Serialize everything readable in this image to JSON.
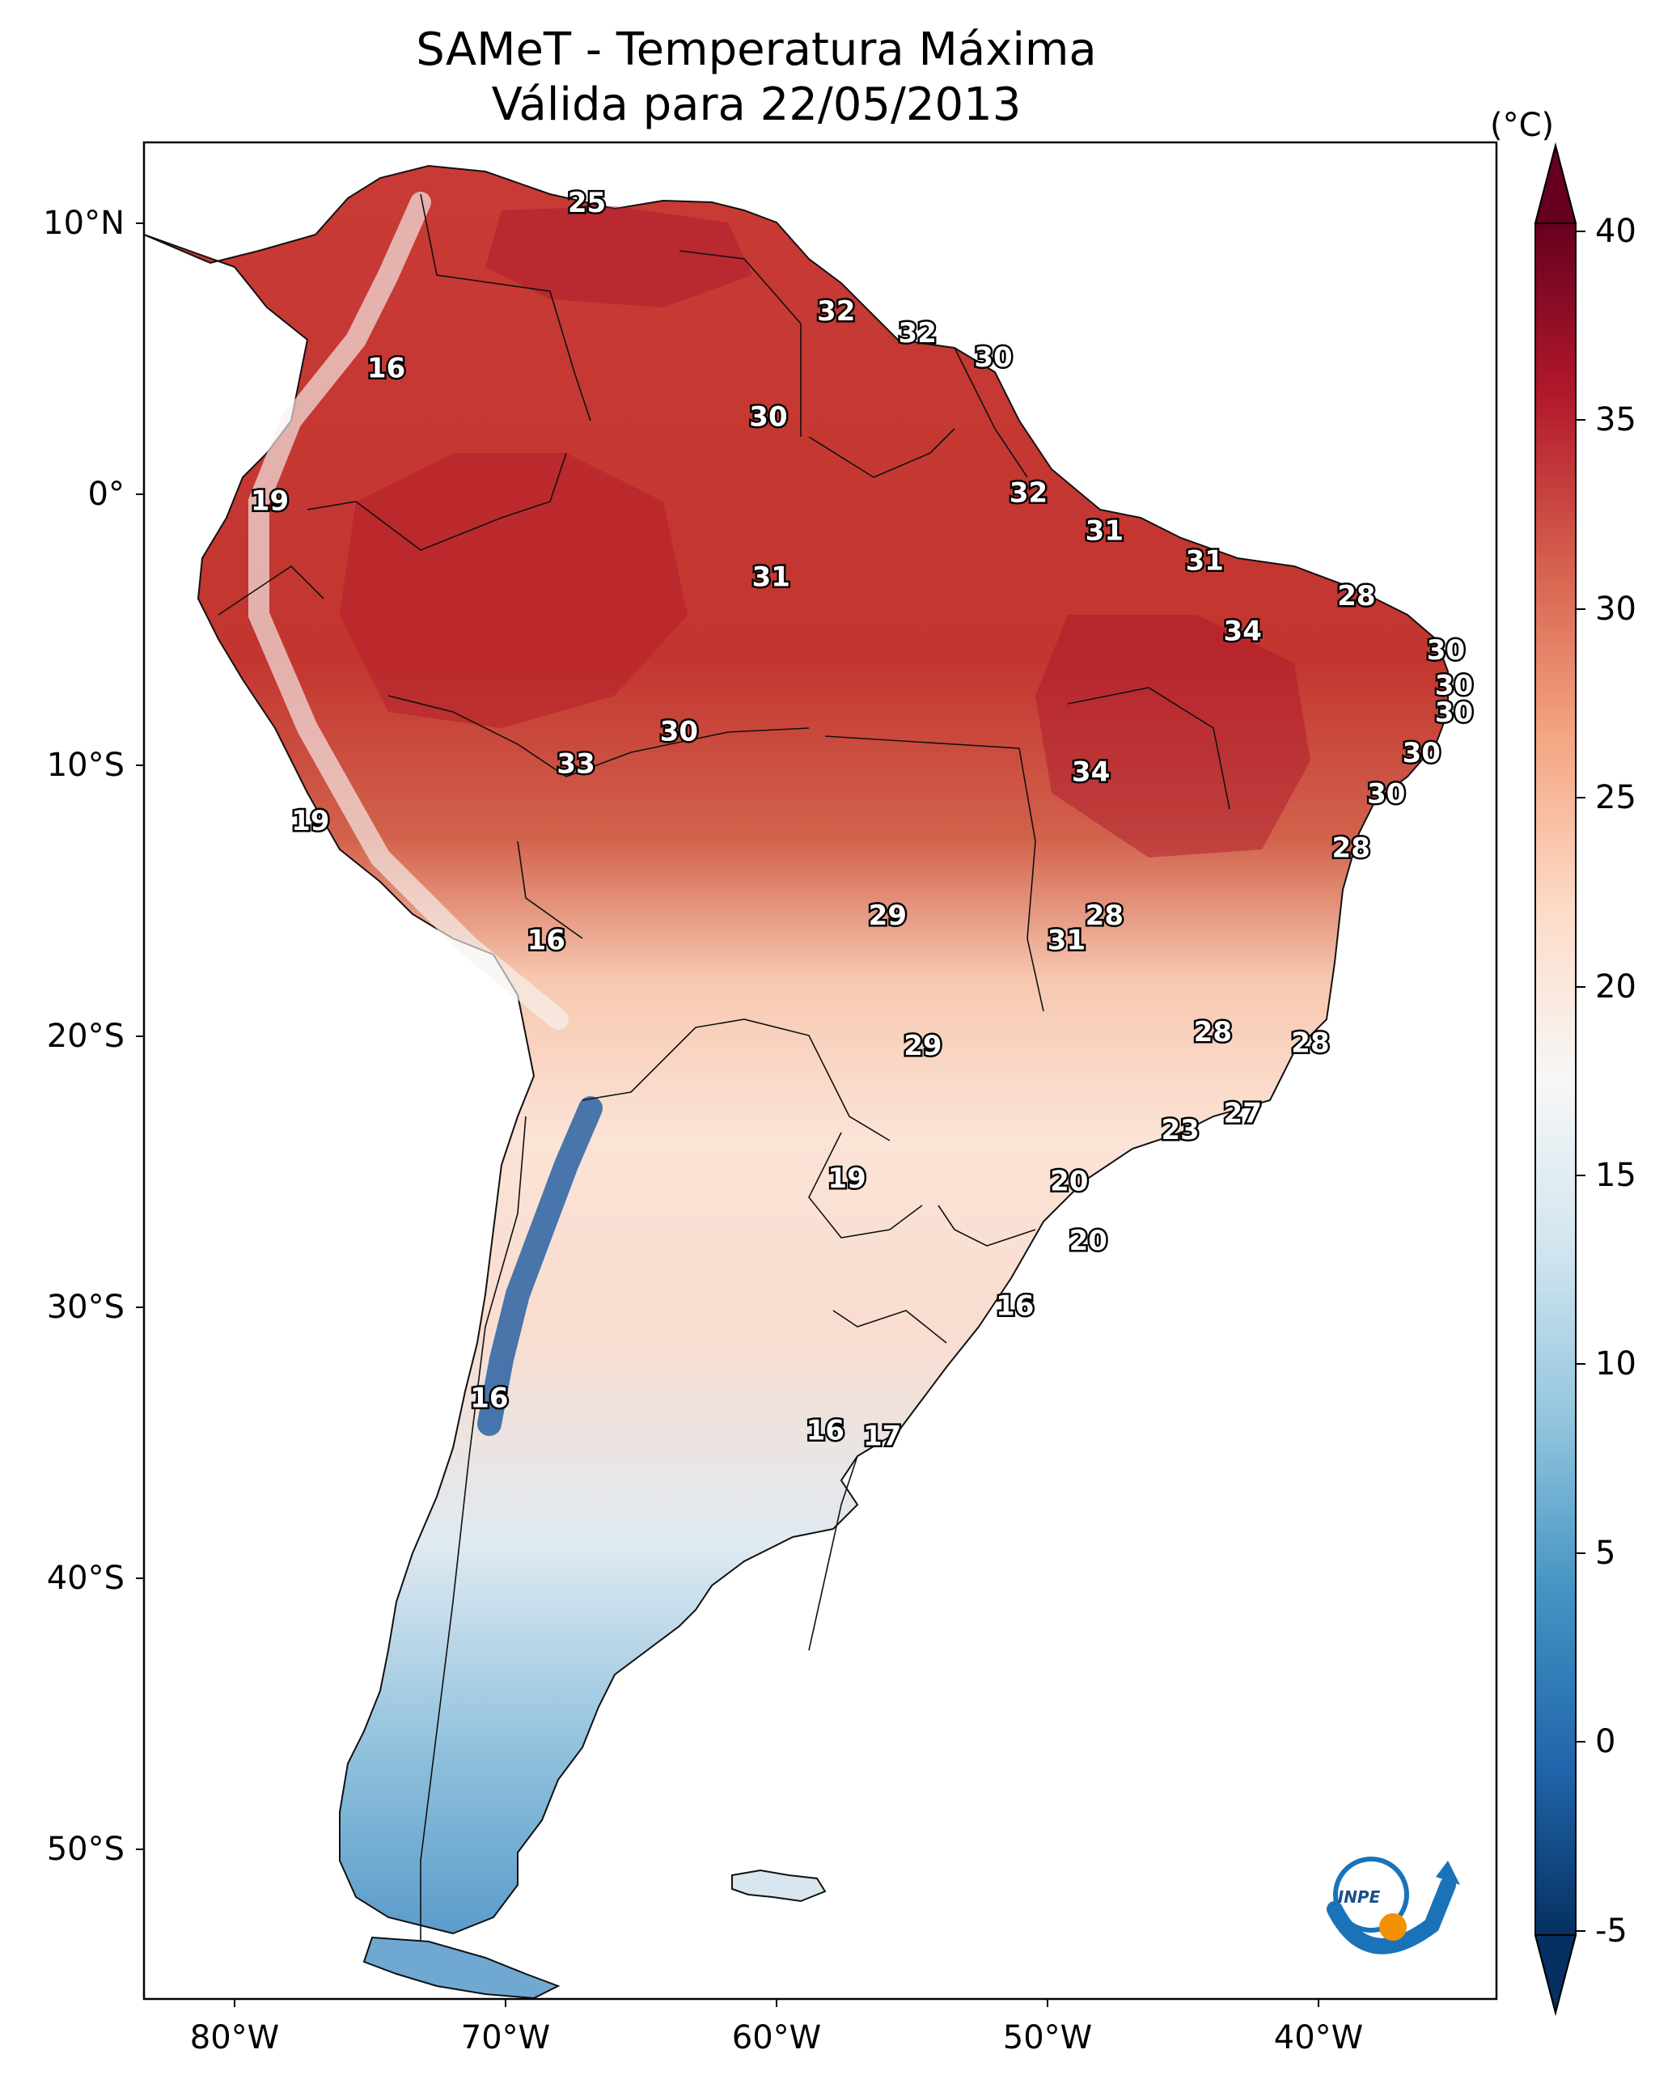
{
  "title": {
    "line1": "SAMeT - Temperatura Máxima",
    "line2": "Válida para 22/05/2013"
  },
  "colorbar": {
    "unit": "(°C)",
    "ticks": [
      "40",
      "35",
      "30",
      "25",
      "20",
      "15",
      "10",
      "5",
      "0",
      "-5"
    ],
    "range": [
      -5,
      40
    ],
    "colors": [
      "#053061",
      "#2166ac",
      "#4393c3",
      "#92c5de",
      "#d1e5f0",
      "#f7f7f7",
      "#fddbc7",
      "#f4a582",
      "#d6604d",
      "#b2182b",
      "#67001f"
    ]
  },
  "axes": {
    "lat_labels": [
      "10°N",
      "0°",
      "10°S",
      "20°S",
      "30°S",
      "40°S",
      "50°S"
    ],
    "lon_labels": [
      "80°W",
      "70°W",
      "60°W",
      "50°W",
      "40°W"
    ]
  },
  "logo_text": "INPE",
  "map_labels": [
    {
      "value": "25",
      "lon": -67,
      "lat": 10.7
    },
    {
      "value": "32",
      "lon": -57.8,
      "lat": 6.7
    },
    {
      "value": "32",
      "lon": -54.8,
      "lat": 5.9
    },
    {
      "value": "30",
      "lon": -52,
      "lat": 5
    },
    {
      "value": "16",
      "lon": -74.4,
      "lat": 4.6
    },
    {
      "value": "30",
      "lon": -60.3,
      "lat": 2.8
    },
    {
      "value": "32",
      "lon": -50.7,
      "lat": 0
    },
    {
      "value": "19",
      "lon": -78.7,
      "lat": -0.3
    },
    {
      "value": "31",
      "lon": -47.9,
      "lat": -1.4
    },
    {
      "value": "31",
      "lon": -44.2,
      "lat": -2.5
    },
    {
      "value": "31",
      "lon": -60.2,
      "lat": -3.1
    },
    {
      "value": "28",
      "lon": -38.6,
      "lat": -3.8
    },
    {
      "value": "34",
      "lon": -42.8,
      "lat": -5.1
    },
    {
      "value": "30",
      "lon": -35.3,
      "lat": -5.8
    },
    {
      "value": "30",
      "lon": -35,
      "lat": -7.1
    },
    {
      "value": "30",
      "lon": -35,
      "lat": -8.1
    },
    {
      "value": "30",
      "lon": -63.6,
      "lat": -8.8
    },
    {
      "value": "30",
      "lon": -36.2,
      "lat": -9.6
    },
    {
      "value": "33",
      "lon": -67.4,
      "lat": -10
    },
    {
      "value": "34",
      "lon": -48.4,
      "lat": -10.3
    },
    {
      "value": "30",
      "lon": -37.5,
      "lat": -11.1
    },
    {
      "value": "19",
      "lon": -77.2,
      "lat": -12.1
    },
    {
      "value": "28",
      "lon": -38.8,
      "lat": -13.1
    },
    {
      "value": "29",
      "lon": -55.9,
      "lat": -15.6
    },
    {
      "value": "28",
      "lon": -47.9,
      "lat": -15.6
    },
    {
      "value": "16",
      "lon": -68.5,
      "lat": -16.5
    },
    {
      "value": "31",
      "lon": -49.3,
      "lat": -16.5
    },
    {
      "value": "28",
      "lon": -43.9,
      "lat": -19.9
    },
    {
      "value": "29",
      "lon": -54.6,
      "lat": -20.4
    },
    {
      "value": "28",
      "lon": -40.3,
      "lat": -20.3
    },
    {
      "value": "27",
      "lon": -42.8,
      "lat": -22.9
    },
    {
      "value": "23",
      "lon": -45.1,
      "lat": -23.5
    },
    {
      "value": "19",
      "lon": -57.4,
      "lat": -25.3
    },
    {
      "value": "20",
      "lon": -49.2,
      "lat": -25.4
    },
    {
      "value": "20",
      "lon": -48.5,
      "lat": -27.6
    },
    {
      "value": "16",
      "lon": -51.2,
      "lat": -30
    },
    {
      "value": "16",
      "lon": -70.6,
      "lat": -33.4
    },
    {
      "value": "16",
      "lon": -58.2,
      "lat": -34.6
    },
    {
      "value": "17",
      "lon": -56.1,
      "lat": -34.8
    }
  ]
}
